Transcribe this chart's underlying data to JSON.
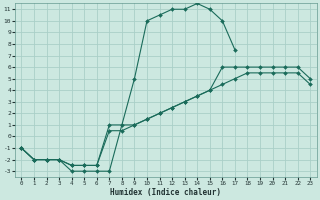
{
  "xlabel": "Humidex (Indice chaleur)",
  "bg_color": "#cce8e0",
  "grid_color": "#aacfc8",
  "line_color": "#1a6b5a",
  "xlim": [
    -0.5,
    23.5
  ],
  "ylim": [
    -3.5,
    11.5
  ],
  "xticks": [
    0,
    1,
    2,
    3,
    4,
    5,
    6,
    7,
    8,
    9,
    10,
    11,
    12,
    13,
    14,
    15,
    16,
    17,
    18,
    19,
    20,
    21,
    22,
    23
  ],
  "yticks": [
    -3,
    -2,
    -1,
    0,
    1,
    2,
    3,
    4,
    5,
    6,
    7,
    8,
    9,
    10,
    11
  ],
  "ytick_labels": [
    "-3",
    "-2",
    "-1",
    "0",
    "1",
    "2",
    "3",
    "4",
    "5",
    "6",
    "7",
    "8",
    "9",
    "10",
    "11"
  ],
  "line1_x": [
    0,
    1,
    2,
    3,
    4,
    5,
    6,
    7,
    9,
    10,
    11,
    12,
    13,
    14,
    15,
    16,
    17
  ],
  "line1_y": [
    -1,
    -2,
    -2,
    -2,
    -3,
    -3,
    -3,
    -3,
    5,
    10,
    10.5,
    11,
    11,
    11.5,
    11,
    10,
    7.5
  ],
  "line2_x": [
    0,
    1,
    2,
    3,
    4,
    5,
    6,
    7,
    8,
    9,
    10,
    11,
    12,
    13,
    14,
    15,
    16,
    17,
    18,
    19,
    20,
    21,
    22,
    23
  ],
  "line2_y": [
    -1,
    -2,
    -2,
    -2,
    -2.5,
    -2.5,
    -2.5,
    1.0,
    1.0,
    1.0,
    1.5,
    2.0,
    2.5,
    3.0,
    3.5,
    4.0,
    6.0,
    6.0,
    6.0,
    6.0,
    6.0,
    6.0,
    6.0,
    5.0
  ],
  "line3_x": [
    0,
    1,
    2,
    3,
    4,
    5,
    6,
    7,
    8,
    9,
    10,
    11,
    12,
    13,
    14,
    15,
    16,
    17,
    18,
    19,
    20,
    21,
    22,
    23
  ],
  "line3_y": [
    -1,
    -2,
    -2,
    -2,
    -2.5,
    -2.5,
    -2.5,
    0.5,
    0.5,
    1.0,
    1.5,
    2.0,
    2.5,
    3.0,
    3.5,
    4.0,
    4.5,
    5.0,
    5.5,
    5.5,
    5.5,
    5.5,
    5.5,
    4.5
  ]
}
